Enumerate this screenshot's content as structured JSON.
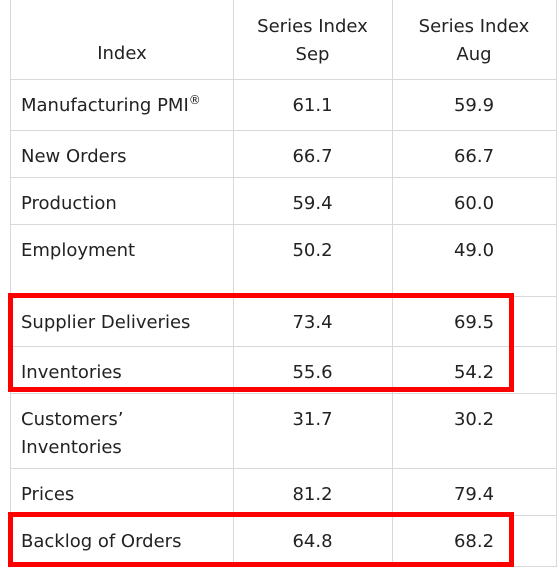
{
  "table": {
    "headers": {
      "index": "Index",
      "sep_line1": "Series Index",
      "sep_line2": "Sep",
      "aug_line1": "Series Index",
      "aug_line2": "Aug"
    },
    "rows": [
      {
        "label": "Manufacturing PMI",
        "sup": "®",
        "sep": "61.1",
        "aug": "59.9"
      },
      {
        "label": "New Orders",
        "sep": "66.7",
        "aug": "66.7"
      },
      {
        "label": "Production",
        "sep": "59.4",
        "aug": "60.0"
      },
      {
        "label": "Employment",
        "sep": "50.2",
        "aug": "49.0"
      },
      {
        "label": "Supplier Deliveries",
        "sep": "73.4",
        "aug": "69.5"
      },
      {
        "label": "Inventories",
        "sep": "55.6",
        "aug": "54.2"
      },
      {
        "label_line1": "Customers’",
        "label_line2": "Inventories",
        "sep": "31.7",
        "aug": "30.2"
      },
      {
        "label": "Prices",
        "sep": "81.2",
        "aug": "79.4"
      },
      {
        "label": "Backlog of Orders",
        "sep": "64.8",
        "aug": "68.2"
      }
    ]
  },
  "highlight_color": "#ff0000"
}
